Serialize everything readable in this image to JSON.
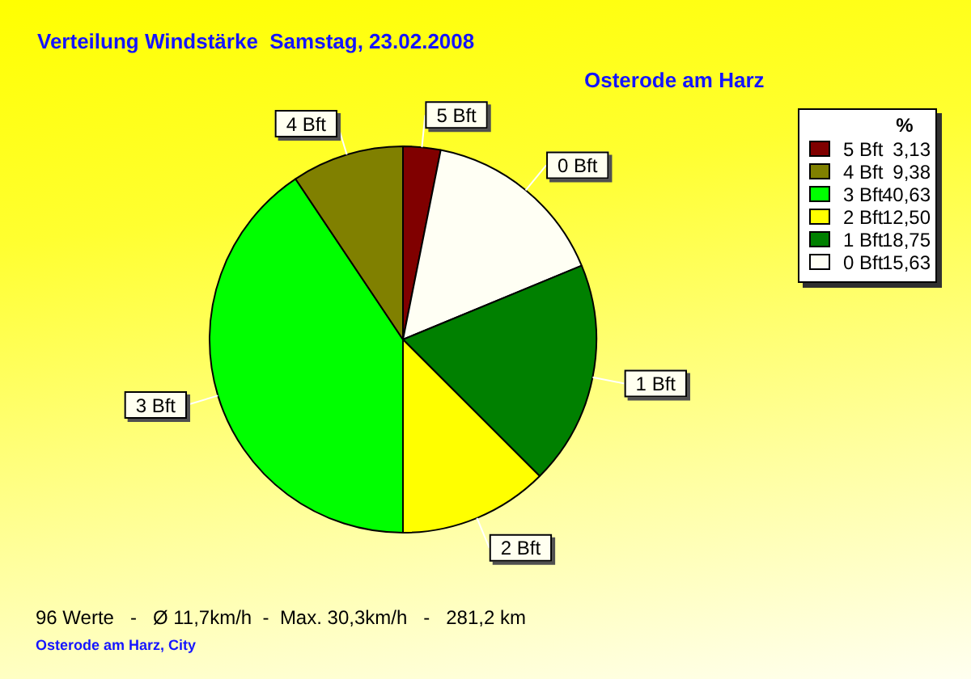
{
  "chart_data": {
    "type": "pie",
    "title": "Verteilung Windstärke  Samstag, 23.02.2008",
    "subtitle": "Osterode am Harz",
    "legend_title": "%",
    "categories": [
      "5 Bft",
      "0 Bft",
      "1 Bft",
      "2 Bft",
      "3 Bft",
      "4 Bft"
    ],
    "values": [
      3.13,
      15.63,
      18.75,
      12.5,
      40.63,
      9.38
    ],
    "value_labels": [
      "3,13",
      "15,63",
      "18,75",
      "12,50",
      "40,63",
      "9,38"
    ],
    "colors": [
      "#800000",
      "#fffff4",
      "#008000",
      "#ffff00",
      "#00ff00",
      "#808000"
    ],
    "legend": "top right",
    "annotations": [
      "96 Werte   -   Ø 11,7km/h  -  Max. 30,3km/h   -   281,2 km",
      "Osterode am Harz, City"
    ]
  }
}
